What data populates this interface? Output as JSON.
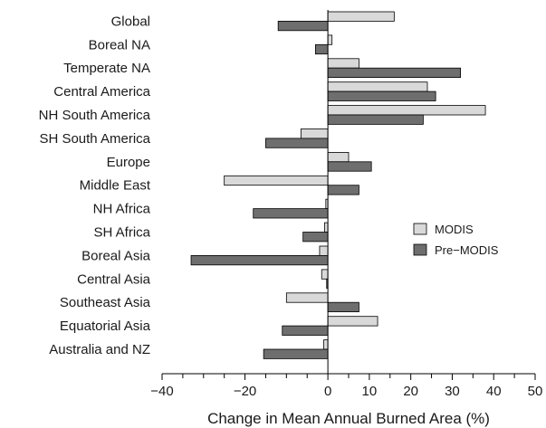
{
  "chart_data": {
    "type": "bar",
    "orientation": "horizontal",
    "categories": [
      "Global",
      "Boreal NA",
      "Temperate NA",
      "Central America",
      "NH South America",
      "SH South America",
      "Europe",
      "Middle East",
      "NH Africa",
      "SH Africa",
      "Boreal Asia",
      "Central Asia",
      "Southeast Asia",
      "Equatorial Asia",
      "Australia and NZ"
    ],
    "series": [
      {
        "name": "MODIS",
        "color": "#d9d9d9",
        "values": [
          16,
          1,
          7.5,
          24,
          38,
          -6.5,
          5,
          -25,
          -0.5,
          -0.8,
          -2,
          -1.5,
          -10,
          12,
          -1
        ]
      },
      {
        "name": "Pre−MODIS",
        "color": "#6e6e6e",
        "values": [
          -12,
          -3,
          32,
          26,
          23,
          -15,
          10.5,
          7.5,
          -18,
          -6,
          -33,
          -0.3,
          7.5,
          -11,
          -15.5
        ]
      }
    ],
    "xlabel": "Change in Mean Annual Burned Area (%)",
    "ylabel": "",
    "xlim": [
      -40,
      50
    ],
    "xticks": [
      -40,
      -20,
      0,
      10,
      20,
      30,
      40,
      50
    ],
    "tick_labels": [
      "−40",
      "−20",
      "0",
      "10",
      "20",
      "30",
      "40",
      "50"
    ],
    "zero_line": true,
    "grid": false,
    "legend_position": "right"
  }
}
